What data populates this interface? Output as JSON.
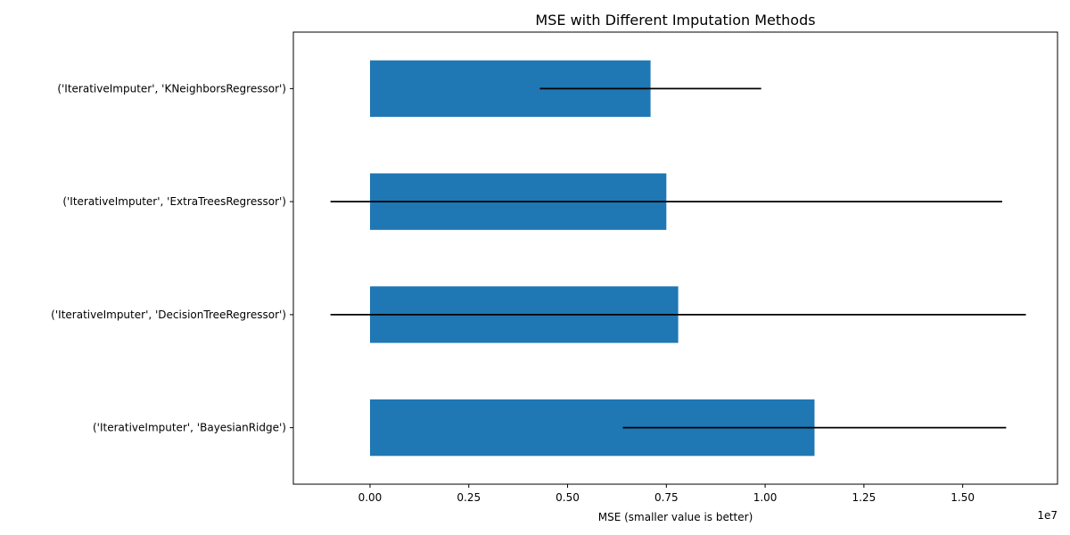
{
  "chart_data": {
    "type": "bar",
    "orientation": "horizontal",
    "title": "MSE with Different Imputation Methods",
    "xlabel": "MSE (smaller value is better)",
    "ylabel": "",
    "x_offset_label": "1e7",
    "xlim": [
      -1940000,
      17400000
    ],
    "x_ticks": [
      0,
      2500000,
      5000000,
      7500000,
      10000000,
      12500000,
      15000000
    ],
    "x_tick_labels": [
      "0.00",
      "0.25",
      "0.50",
      "0.75",
      "1.00",
      "1.25",
      "1.50"
    ],
    "categories": [
      "('IterativeImputer', 'KNeighborsRegressor')",
      "('IterativeImputer', 'ExtraTreesRegressor')",
      "('IterativeImputer', 'DecisionTreeRegressor')",
      "('IterativeImputer', 'BayesianRidge')"
    ],
    "values": [
      7100000,
      7500000,
      7800000,
      11250000
    ],
    "errors": [
      2800000,
      8500000,
      8800000,
      4850000
    ],
    "bar_color": "#1f77b4",
    "error_color": "#000000",
    "grid": false,
    "legend": false
  }
}
